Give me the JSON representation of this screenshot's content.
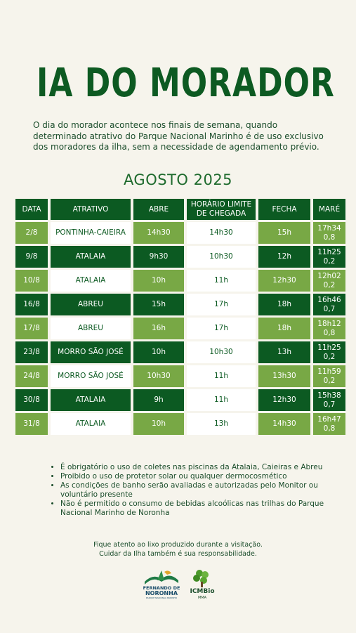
{
  "title": "IA DO MORADOR",
  "intro": "O dia do morador acontece nos finais de semana, quando determinado atrativo do Parque Nacional Marinho é de uso exclusivo dos moradores da ilha, sem a necessidade de agendamento prévio.",
  "month": "AGOSTO 2025",
  "table": {
    "headers": {
      "data": "DATA",
      "atrativo": "ATRATIVO",
      "abre": "ABRE",
      "horario": "HORÁRIO LIMITE DE CHEGADA",
      "fecha": "FECHA",
      "mare": "MARÉ"
    },
    "rows": [
      {
        "data": "2/8",
        "atrativo": "PONTINHA-CAIEIRA",
        "abre": "14h30",
        "limite": "14h30",
        "fecha": "15h",
        "mare_hora": "17h34",
        "mare_altura": "0,8",
        "style": "light"
      },
      {
        "data": "9/8",
        "atrativo": "ATALAIA",
        "abre": "9h30",
        "limite": "10h30",
        "fecha": "12h",
        "mare_hora": "11h25",
        "mare_altura": "0,2",
        "style": "dark"
      },
      {
        "data": "10/8",
        "atrativo": "ATALAIA",
        "abre": "10h",
        "limite": "11h",
        "fecha": "12h30",
        "mare_hora": "12h02",
        "mare_altura": "0,2",
        "style": "light"
      },
      {
        "data": "16/8",
        "atrativo": "ABREU",
        "abre": "15h",
        "limite": "17h",
        "fecha": "18h",
        "mare_hora": "16h46",
        "mare_altura": "0,7",
        "style": "dark"
      },
      {
        "data": "17/8",
        "atrativo": "ABREU",
        "abre": "16h",
        "limite": "17h",
        "fecha": "18h",
        "mare_hora": "18h12",
        "mare_altura": "0,8",
        "style": "light"
      },
      {
        "data": "23/8",
        "atrativo": "MORRO SÃO JOSÉ",
        "abre": "10h",
        "limite": "10h30",
        "fecha": "13h",
        "mare_hora": "11h25",
        "mare_altura": "0,2",
        "style": "dark"
      },
      {
        "data": "24/8",
        "atrativo": "MORRO SÃO JOSÉ",
        "abre": "10h30",
        "limite": "11h",
        "fecha": "13h30",
        "mare_hora": "11h59",
        "mare_altura": "0,2",
        "style": "light"
      },
      {
        "data": "30/8",
        "atrativo": "ATALAIA",
        "abre": "9h",
        "limite": "11h",
        "fecha": "12h30",
        "mare_hora": "15h38",
        "mare_altura": "0,7",
        "style": "dark"
      },
      {
        "data": "31/8",
        "atrativo": "ATALAIA",
        "abre": "10h",
        "limite": "13h",
        "fecha": "14h30",
        "mare_hora": "16h47",
        "mare_altura": "0,8",
        "style": "light"
      }
    ]
  },
  "notes": [
    "É obrigatório o uso de coletes nas piscinas da Atalaia, Caieiras e Abreu",
    "Proibido o uso de protetor solar ou qualquer dermocosmético",
    "As condições  de banho serão avaliadas e autorizadas pelo Monitor ou voluntário presente",
    "Não é permitido o consumo de bebidas alcoólicas nas trilhas do Parque Nacional Marinho de Noronha"
  ],
  "footer": {
    "line1": "Fique atento ao lixo produzido durante a visitação.",
    "line2": "Cuidar da Ilha também é sua responsabilidade."
  },
  "logos": {
    "fernando": {
      "line1": "FERNANDO DE",
      "line2": "NORONHA",
      "line3": "PARQUE NACIONAL MARINHO"
    },
    "icmbio": {
      "name": "ICMBio",
      "sub": "MMA"
    }
  },
  "colors": {
    "dark_green": "#0c5a22",
    "light_green": "#78a845",
    "background": "#f6f4ec"
  }
}
